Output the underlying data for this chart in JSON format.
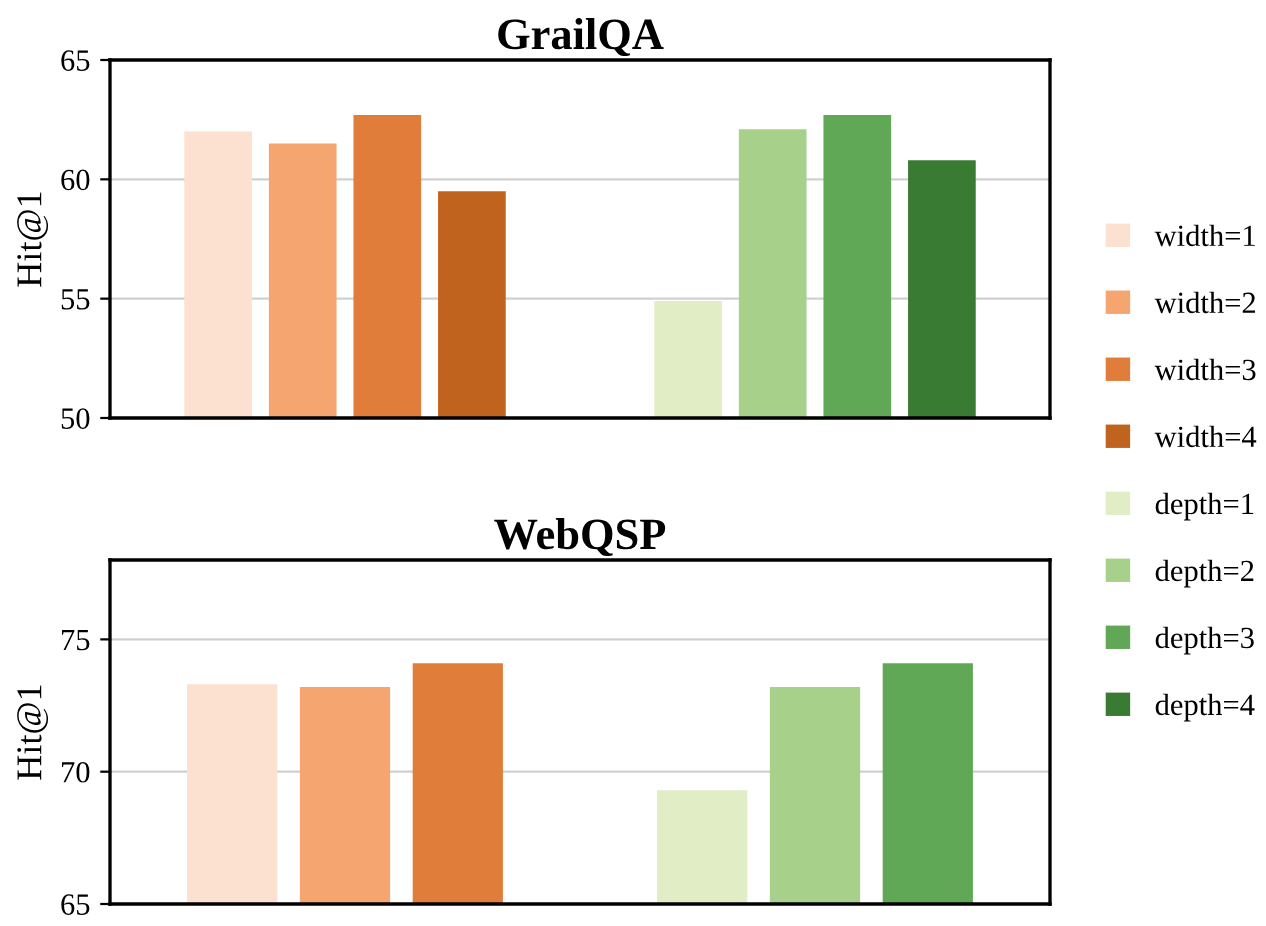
{
  "chart_data": [
    {
      "type": "bar",
      "title": "GrailQA",
      "ylabel": "Hit@1",
      "categories": [
        null,
        null
      ],
      "ylim": [
        50,
        65
      ],
      "yticks": [
        50,
        55,
        60,
        65
      ],
      "grid": "y",
      "legend": "right",
      "tick_labels": "y",
      "series": [
        {
          "name": "width=1",
          "color": "#fce0d0",
          "values": [
            62.0,
            null
          ]
        },
        {
          "name": "width=2",
          "color": "#f5a56f",
          "values": [
            61.5,
            null
          ]
        },
        {
          "name": "width=3",
          "color": "#e17d3a",
          "values": [
            62.7,
            null
          ]
        },
        {
          "name": "width=4",
          "color": "#c0631f",
          "values": [
            59.5,
            null
          ]
        },
        {
          "name": "depth=1",
          "color": "#e1edc4",
          "values": [
            null,
            54.9
          ]
        },
        {
          "name": "depth=2",
          "color": "#a7d08a",
          "values": [
            null,
            62.1
          ]
        },
        {
          "name": "depth=3",
          "color": "#60a855",
          "values": [
            null,
            62.7
          ]
        },
        {
          "name": "depth=4",
          "color": "#3a7b33",
          "values": [
            null,
            60.8
          ]
        }
      ]
    },
    {
      "type": "bar",
      "title": "WebQSP",
      "ylabel": "Hit@1",
      "categories": [
        null,
        null
      ],
      "ylim": [
        65,
        78
      ],
      "yticks": [
        65,
        70,
        75
      ],
      "grid": "y",
      "tick_labels": "y",
      "series": [
        {
          "color": "#fce0d0",
          "values": [
            73.3,
            null
          ]
        },
        {
          "color": "#f5a56f",
          "values": [
            73.2,
            null
          ]
        },
        {
          "color": "#e17d3a",
          "values": [
            74.1,
            null
          ]
        },
        {
          "color": "#e1edc4",
          "values": [
            null,
            69.3
          ]
        },
        {
          "color": "#a7d08a",
          "values": [
            null,
            73.2
          ]
        },
        {
          "color": "#60a855",
          "values": [
            null,
            74.1
          ]
        }
      ]
    }
  ]
}
